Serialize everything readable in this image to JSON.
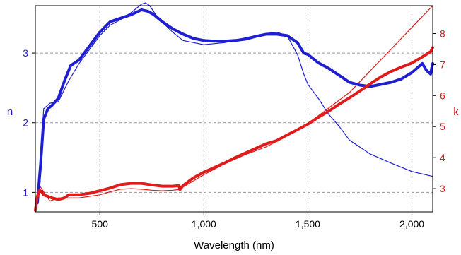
{
  "chart_data": {
    "type": "line",
    "xlabel": "Wavelength (nm)",
    "ylabel_left": "n",
    "ylabel_right": "k",
    "xlim": [
      190,
      2100
    ],
    "ylim_left": [
      0.72,
      3.68
    ],
    "ylim_right": [
      2.25,
      8.9
    ],
    "x_ticks": [
      {
        "value": 500,
        "label": "500"
      },
      {
        "value": 1000,
        "label": "1,000"
      },
      {
        "value": 1500,
        "label": "1,500"
      },
      {
        "value": 2000,
        "label": "2,000"
      }
    ],
    "y_left_ticks": [
      {
        "value": 1,
        "label": "1"
      },
      {
        "value": 2,
        "label": "2"
      },
      {
        "value": 3,
        "label": "3"
      }
    ],
    "y_right_ticks": [
      {
        "value": 3,
        "label": "3"
      },
      {
        "value": 4,
        "label": "4"
      },
      {
        "value": 5,
        "label": "5"
      },
      {
        "value": 6,
        "label": "6"
      },
      {
        "value": 7,
        "label": "7"
      },
      {
        "value": 8,
        "label": "8"
      }
    ],
    "grid": true,
    "colors": {
      "n": "#1f1fd0",
      "k": "#e01b1b",
      "grid": "#9a9a9a",
      "frame": "#000000"
    },
    "series": [
      {
        "axis": "left",
        "color": "#1f1fd0",
        "style": "measured",
        "x": [
          200,
          215,
          230,
          250,
          270,
          300,
          330,
          360,
          400,
          450,
          500,
          550,
          600,
          650,
          700,
          730,
          760,
          800,
          850,
          900,
          950,
          1000,
          1050,
          1100,
          1150,
          1200,
          1250,
          1300,
          1350,
          1400,
          1450,
          1480,
          1500,
          1550,
          1600,
          1650,
          1700,
          1750,
          1800,
          1850,
          1900,
          1950,
          2000,
          2050,
          2070,
          2090,
          2095,
          2100
        ],
        "values": [
          0.85,
          1.4,
          2.05,
          2.2,
          2.25,
          2.35,
          2.6,
          2.82,
          2.9,
          3.1,
          3.3,
          3.45,
          3.5,
          3.55,
          3.62,
          3.6,
          3.55,
          3.45,
          3.35,
          3.27,
          3.21,
          3.18,
          3.17,
          3.17,
          3.18,
          3.2,
          3.24,
          3.27,
          3.27,
          3.25,
          3.15,
          3.0,
          2.98,
          2.86,
          2.78,
          2.68,
          2.58,
          2.54,
          2.52,
          2.55,
          2.58,
          2.63,
          2.72,
          2.85,
          2.75,
          2.7,
          2.78,
          2.85
        ]
      },
      {
        "axis": "left",
        "color": "#1f1fd0",
        "style": "model",
        "x": [
          200,
          215,
          230,
          260,
          300,
          350,
          400,
          450,
          500,
          550,
          600,
          650,
          700,
          720,
          740,
          780,
          850,
          900,
          1000,
          1100,
          1200,
          1300,
          1350,
          1400,
          1450,
          1480,
          1500,
          1550,
          1600,
          1650,
          1700,
          1800,
          1900,
          2000,
          2100
        ],
        "values": [
          0.85,
          1.5,
          2.2,
          2.28,
          2.3,
          2.6,
          2.85,
          3.05,
          3.25,
          3.4,
          3.48,
          3.58,
          3.7,
          3.72,
          3.68,
          3.5,
          3.3,
          3.18,
          3.12,
          3.15,
          3.22,
          3.28,
          3.3,
          3.25,
          2.98,
          2.7,
          2.55,
          2.35,
          2.12,
          1.95,
          1.75,
          1.55,
          1.42,
          1.3,
          1.23
        ]
      },
      {
        "axis": "right",
        "color": "#e01b1b",
        "style": "measured",
        "x": [
          190,
          200,
          210,
          220,
          230,
          250,
          270,
          300,
          330,
          350,
          400,
          450,
          500,
          550,
          600,
          650,
          700,
          750,
          800,
          850,
          880,
          885,
          900,
          950,
          1000,
          1050,
          1100,
          1150,
          1200,
          1250,
          1300,
          1350,
          1400,
          1450,
          1500,
          1550,
          1600,
          1650,
          1700,
          1750,
          1800,
          1850,
          1900,
          1950,
          2000,
          2050,
          2090,
          2100
        ],
        "values": [
          2.3,
          2.75,
          2.95,
          2.9,
          2.8,
          2.75,
          2.7,
          2.65,
          2.7,
          2.8,
          2.8,
          2.85,
          2.93,
          3.02,
          3.13,
          3.17,
          3.17,
          3.12,
          3.08,
          3.08,
          3.1,
          2.97,
          3.1,
          3.35,
          3.53,
          3.68,
          3.83,
          4.0,
          4.15,
          4.3,
          4.45,
          4.55,
          4.73,
          4.9,
          5.08,
          5.3,
          5.5,
          5.72,
          5.93,
          6.15,
          6.38,
          6.6,
          6.78,
          6.92,
          7.05,
          7.25,
          7.42,
          7.55
        ]
      },
      {
        "axis": "right",
        "color": "#e01b1b",
        "style": "model",
        "x": [
          190,
          200,
          210,
          220,
          240,
          260,
          300,
          350,
          400,
          450,
          500,
          550,
          600,
          650,
          700,
          750,
          800,
          850,
          880,
          900,
          950,
          1000,
          1100,
          1200,
          1300,
          1400,
          1500,
          1600,
          1700,
          1800,
          1900,
          2000,
          2100
        ],
        "values": [
          2.3,
          2.7,
          3.1,
          3.0,
          2.8,
          2.6,
          2.7,
          2.7,
          2.7,
          2.75,
          2.8,
          2.9,
          2.98,
          3.0,
          2.98,
          2.95,
          2.93,
          2.95,
          2.97,
          3.05,
          3.25,
          3.45,
          3.8,
          4.1,
          4.35,
          4.7,
          5.1,
          5.6,
          6.1,
          6.8,
          7.5,
          8.2,
          8.9
        ]
      }
    ]
  }
}
